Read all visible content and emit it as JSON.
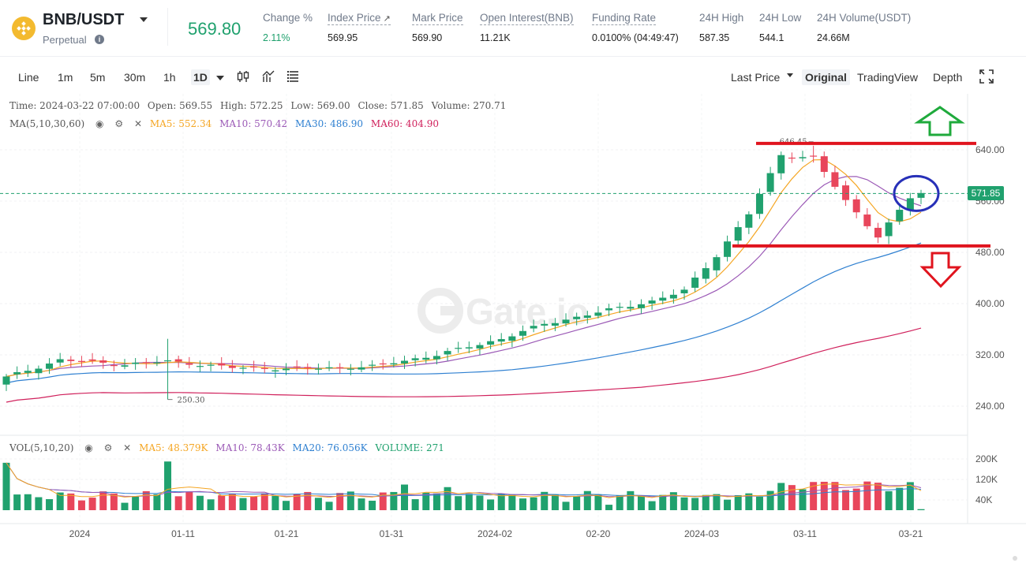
{
  "header": {
    "pair": "BNB/USDT",
    "contract_type": "Perpetual",
    "last_price": "569.80",
    "stats": [
      {
        "label": "Change %",
        "value": "2.11%"
      },
      {
        "label": "Index Price",
        "value": "569.95"
      },
      {
        "label": "Mark Price",
        "value": "569.90"
      },
      {
        "label": "Open Interest(BNB)",
        "value": "11.21K"
      },
      {
        "label": "Funding Rate",
        "value": "0.0100% (04:49:47)"
      },
      {
        "label": "24H High",
        "value": "587.35"
      },
      {
        "label": "24H Low",
        "value": "544.1"
      },
      {
        "label": "24H Volume(USDT)",
        "value": "24.66M"
      }
    ],
    "colors": {
      "up": "#20a16e",
      "down": "#e8465b",
      "coin": "#f3ba2f"
    }
  },
  "toolbar": {
    "timeframes": [
      "Line",
      "1m",
      "5m",
      "30m",
      "1h",
      "1D"
    ],
    "active_timeframe": "1D",
    "icons": [
      "candlestick-type-icon",
      "indicator-icon",
      "settings-lines-icon"
    ],
    "price_mode": "Last Price",
    "views": [
      "Original",
      "TradingView",
      "Depth"
    ],
    "active_view": "Original",
    "fullscreen_icon": "fullscreen-icon"
  },
  "legend": {
    "ohlc": {
      "time": "Time: 2024-03-22 07:00:00",
      "open": "Open: 569.55",
      "high": "High: 572.25",
      "low": "Low: 569.00",
      "close": "Close: 571.85",
      "volume": "Volume: 270.71"
    },
    "ma": {
      "name": "MA(5,10,30,60)",
      "ma5": "MA5: 552.34",
      "ma10": "MA10: 570.42",
      "ma30": "MA30: 486.90",
      "ma60": "MA60: 404.90"
    },
    "vol": {
      "name": "VOL(5,10,20)",
      "ma5": "MA5: 48.379K",
      "ma10": "MA10: 78.43K",
      "ma20": "MA20: 76.056K",
      "volume": "VOLUME: 271"
    },
    "colors": {
      "ma5": "#f5a623",
      "ma10": "#9b59b6",
      "ma30": "#2f80d1",
      "ma60": "#d0215c",
      "vol": "#20a16e"
    }
  },
  "current_price_tag": "571.85",
  "watermark": "Gate.io",
  "chart_data": {
    "type": "candlestick",
    "y_ticks": [
      "640.00",
      "560.00",
      "480.00",
      "400.00",
      "320.00",
      "240.00"
    ],
    "y_range": [
      214,
      674
    ],
    "vol_ticks": [
      "200K",
      "120K",
      "40K"
    ],
    "x_ticks": [
      "2024",
      "01-11",
      "01-21",
      "01-31",
      "2024-02",
      "02-20",
      "2024-03",
      "03-11",
      "03-21"
    ],
    "annotations": {
      "high": "646.45",
      "low": "250.30"
    },
    "support": 490,
    "resistance": 650
  }
}
